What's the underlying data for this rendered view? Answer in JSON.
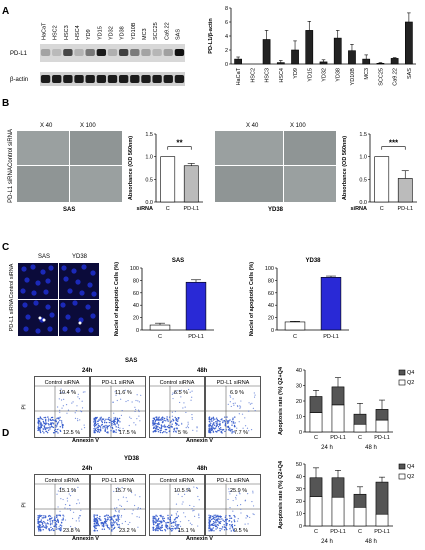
{
  "panels": {
    "a": "A",
    "b": "B",
    "c": "C",
    "d": "D"
  },
  "blot": {
    "lanes": [
      "HaCaT",
      "HSC2",
      "HSC3",
      "HSC4",
      "YD9",
      "YD15",
      "YD32",
      "YD38",
      "YD10B",
      "MC3",
      "SCC25",
      "Ca9.22",
      "SAS"
    ],
    "rows": [
      "PD-L1",
      "β-actin"
    ]
  },
  "chart_data": [
    {
      "type": "bar",
      "panel": "A",
      "categories": [
        "HaCaT",
        "HSC2",
        "HSC3",
        "HSC4",
        "YD9",
        "YD15",
        "YD32",
        "YD38",
        "YD10B",
        "MC3",
        "SCC25",
        "Ca9.22",
        "SAS"
      ],
      "values": [
        0.7,
        0.0,
        3.5,
        0.2,
        2.0,
        4.8,
        0.3,
        3.7,
        1.9,
        0.7,
        0.1,
        0.8,
        6.0
      ],
      "errors": [
        0.3,
        0.0,
        1.3,
        0.3,
        1.3,
        1.3,
        0.3,
        1.1,
        0.9,
        0.6,
        0.1,
        0.1,
        1.3
      ],
      "ylabel": "PD-L1/β-actin",
      "ylim": [
        0,
        8
      ],
      "yticks": [
        "0",
        "2",
        "4",
        "6",
        "8"
      ]
    },
    {
      "type": "bar",
      "panel": "B-SAS",
      "categories": [
        "C",
        "PD-L1"
      ],
      "values": [
        1.0,
        0.8
      ],
      "errors": [
        0.0,
        0.05
      ],
      "colors": [
        "#ffffff",
        "#bbbbbb"
      ],
      "ylabel": "Absorbance (OD 560nm)",
      "xprefix": "siRNA",
      "ylim": [
        0,
        1.5
      ],
      "yticks": [
        "0.0",
        "0.5",
        "1.0",
        "1.5"
      ],
      "significance": "**"
    },
    {
      "type": "bar",
      "panel": "B-YD38",
      "categories": [
        "C",
        "PD-L1"
      ],
      "values": [
        1.0,
        0.52
      ],
      "errors": [
        0.0,
        0.17
      ],
      "colors": [
        "#ffffff",
        "#bbbbbb"
      ],
      "ylabel": "Absorbance (OD 560nm)",
      "xprefix": "siRNA",
      "ylim": [
        0,
        1.5
      ],
      "yticks": [
        "0.0",
        "0.5",
        "1.0",
        "1.5"
      ],
      "significance": "***"
    },
    {
      "type": "bar",
      "panel": "C-SAS",
      "title": "SAS",
      "categories": [
        "C",
        "PD-L1"
      ],
      "values": [
        8,
        77
      ],
      "errors": [
        3,
        4
      ],
      "colors": [
        "#ffffff",
        "#2929d6"
      ],
      "ylabel": "Nuclei of apoptotic Cells (%)",
      "ylim": [
        0,
        100
      ],
      "yticks": [
        "0",
        "20",
        "40",
        "60",
        "80",
        "100"
      ]
    },
    {
      "type": "bar",
      "panel": "C-YD38",
      "title": "YD38",
      "categories": [
        "C",
        "PD-L1"
      ],
      "values": [
        13,
        85
      ],
      "errors": [
        1,
        2
      ],
      "colors": [
        "#ffffff",
        "#2929d6"
      ],
      "ylabel": "Nuclei of apoptotic Cells (%)",
      "ylim": [
        0,
        100
      ],
      "yticks": [
        "0",
        "20",
        "40",
        "60",
        "80",
        "100"
      ]
    },
    {
      "type": "bar",
      "panel": "D-SAS",
      "stacked": true,
      "categories": [
        "C",
        "PD-L1",
        "C",
        "PD-L1"
      ],
      "groups": [
        "24 h",
        "48 h"
      ],
      "series": [
        {
          "name": "Q2",
          "values": [
            12.5,
            17.5,
            5.0,
            7.7
          ],
          "color": "#ffffff"
        },
        {
          "name": "Q4",
          "values": [
            10.4,
            11.6,
            6.5,
            6.9
          ],
          "color": "#555555"
        }
      ],
      "errors": [
        4,
        6,
        7,
        6
      ],
      "ylabel": "Apoptosis rate (%) Q2+Q4",
      "ylim": [
        0,
        40
      ],
      "yticks": [
        "0",
        "10",
        "20",
        "30",
        "40"
      ]
    },
    {
      "type": "bar",
      "panel": "D-YD38",
      "stacked": true,
      "categories": [
        "C",
        "PD-L1",
        "C",
        "PD-L1"
      ],
      "groups": [
        "24 h",
        "48 h"
      ],
      "series": [
        {
          "name": "Q2",
          "values": [
            23.8,
            23.2,
            15.1,
            9.5
          ],
          "color": "#ffffff"
        },
        {
          "name": "Q4",
          "values": [
            15.1,
            15.7,
            10.5,
            25.9
          ],
          "color": "#555555"
        }
      ],
      "errors": [
        8,
        6,
        6,
        4
      ],
      "ylabel": "Apoptosis rate (%) Q2+Q4",
      "ylim": [
        0,
        50
      ],
      "yticks": [
        "0",
        "10",
        "20",
        "30",
        "40",
        "50"
      ]
    }
  ],
  "panel_b": {
    "mag_left": "X 40",
    "mag_right": "X 100",
    "row_control": "Control siRNA",
    "row_pdl1": "PD-L1 siRNA",
    "cell_sas": "SAS",
    "cell_yd38": "YD38"
  },
  "panel_c": {
    "col_sas": "SAS",
    "col_yd38": "YD38",
    "row_control": "Control siRNA",
    "row_pdl1": "PD-L1 siRNA"
  },
  "panel_d": {
    "sas": {
      "title": "SAS",
      "time1": "24h",
      "time2": "48h",
      "plots": [
        {
          "label": "Control siRNA",
          "q4": "10.4 %",
          "q2": "12.5 %"
        },
        {
          "label": "PD-L1 siRNA",
          "q4": "11.6 %",
          "q2": "17.5 %"
        },
        {
          "label": "Control siRNA",
          "q4": "6.5 %",
          "q2": "5 %"
        },
        {
          "label": "PD-L1 siRNA",
          "q4": "6.9 %",
          "q2": "7.7 %"
        }
      ]
    },
    "yd38": {
      "title": "YD38",
      "time1": "24h",
      "time2": "48h",
      "plots": [
        {
          "label": "Control siRNA",
          "q4": "15.1 %",
          "q2": "23.8 %"
        },
        {
          "label": "PD-L1 siRNA",
          "q4": "15.7 %",
          "q2": "23.2 %"
        },
        {
          "label": "Control siRNA",
          "q4": "10.5 %",
          "q2": "15.1 %"
        },
        {
          "label": "PD-L1 siRNA",
          "q4": "25.9 %",
          "q2": "9.5 %"
        }
      ]
    },
    "pi": "PI",
    "annexin": "Annexin V"
  },
  "colors": {
    "blue": "#2929d6",
    "flow_dots": "#3a5fcd"
  }
}
